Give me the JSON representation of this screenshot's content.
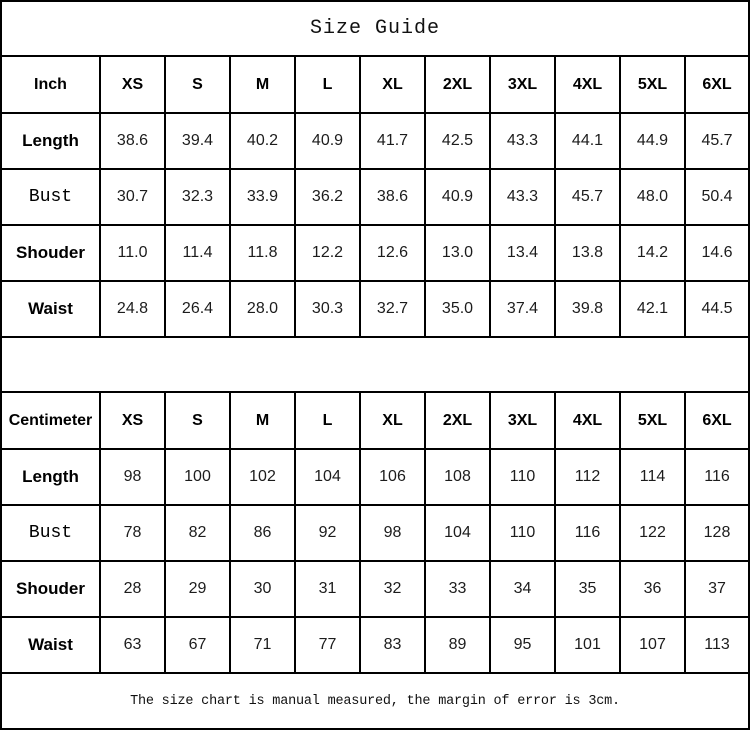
{
  "title": "Size Guide",
  "footer_note": "The size chart is manual measured, the margin of error is 3cm.",
  "colors": {
    "border": "#000000",
    "background": "#ffffff",
    "text": "#000000"
  },
  "chart_data": [
    {
      "type": "table",
      "name": "inch-size-table",
      "title": "Size Guide",
      "unit": "Inch",
      "columns": [
        "Inch",
        "XS",
        "S",
        "M",
        "L",
        "XL",
        "2XL",
        "3XL",
        "4XL",
        "5XL",
        "6XL"
      ],
      "rows": [
        {
          "label": "Length",
          "mono_label": false,
          "values": [
            "38.6",
            "39.4",
            "40.2",
            "40.9",
            "41.7",
            "42.5",
            "43.3",
            "44.1",
            "44.9",
            "45.7"
          ]
        },
        {
          "label": "Bust",
          "mono_label": true,
          "values": [
            "30.7",
            "32.3",
            "33.9",
            "36.2",
            "38.6",
            "40.9",
            "43.3",
            "45.7",
            "48.0",
            "50.4"
          ]
        },
        {
          "label": "Shouder",
          "mono_label": false,
          "values": [
            "11.0",
            "11.4",
            "11.8",
            "12.2",
            "12.6",
            "13.0",
            "13.4",
            "13.8",
            "14.2",
            "14.6"
          ]
        },
        {
          "label": "Waist",
          "mono_label": false,
          "values": [
            "24.8",
            "26.4",
            "28.0",
            "30.3",
            "32.7",
            "35.0",
            "37.4",
            "39.8",
            "42.1",
            "44.5"
          ]
        }
      ]
    },
    {
      "type": "table",
      "name": "centimeter-size-table",
      "title": "Size Guide",
      "unit": "Centimeter",
      "columns": [
        "Centimeter",
        "XS",
        "S",
        "M",
        "L",
        "XL",
        "2XL",
        "3XL",
        "4XL",
        "5XL",
        "6XL"
      ],
      "rows": [
        {
          "label": "Length",
          "mono_label": false,
          "values": [
            "98",
            "100",
            "102",
            "104",
            "106",
            "108",
            "110",
            "112",
            "114",
            "116"
          ]
        },
        {
          "label": "Bust",
          "mono_label": true,
          "values": [
            "78",
            "82",
            "86",
            "92",
            "98",
            "104",
            "110",
            "116",
            "122",
            "128"
          ]
        },
        {
          "label": "Shouder",
          "mono_label": false,
          "values": [
            "28",
            "29",
            "30",
            "31",
            "32",
            "33",
            "34",
            "35",
            "36",
            "37"
          ]
        },
        {
          "label": "Waist",
          "mono_label": false,
          "values": [
            "63",
            "67",
            "71",
            "77",
            "83",
            "89",
            "95",
            "101",
            "107",
            "113"
          ]
        }
      ]
    }
  ]
}
